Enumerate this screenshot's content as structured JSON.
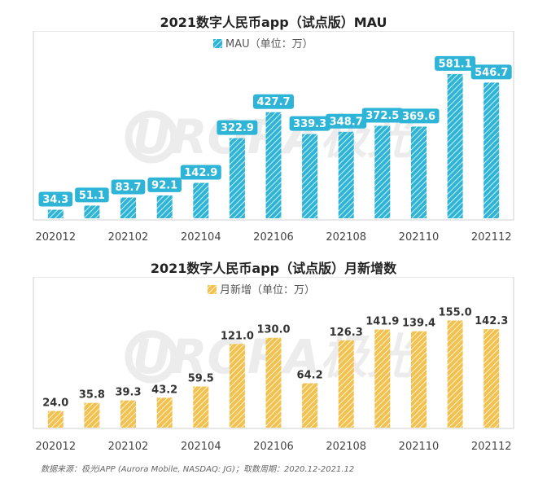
{
  "chart_data": [
    {
      "type": "bar",
      "title": "2021数字人民币app（试点版）MAU",
      "legend": "MAU（单位：万）",
      "legend_position": "top-center",
      "categories": [
        "202012",
        "202101",
        "202102",
        "202103",
        "202104",
        "202105",
        "202106",
        "202107",
        "202108",
        "202109",
        "202110",
        "202111",
        "202112"
      ],
      "x_tick_labels": [
        "202012",
        "202102",
        "202104",
        "202106",
        "202108",
        "202110",
        "202112"
      ],
      "series": [
        {
          "name": "MAU（单位：万）",
          "values": [
            34.3,
            51.1,
            83.7,
            92.1,
            142.9,
            322.9,
            427.7,
            339.3,
            348.7,
            372.5,
            369.6,
            581.1,
            546.7
          ]
        }
      ],
      "label_texts": [
        "34.3",
        "51.1",
        "83.7",
        "92.1",
        "142.9",
        "322.9",
        "427.7",
        "339.3",
        "348.7",
        "372.5",
        "369.6",
        "581.1",
        "546.7"
      ],
      "bar_color": "#2db4d6",
      "label_bg": "#2db4d6",
      "label_color": "#ffffff",
      "ylim": [
        0,
        640
      ],
      "grid": false
    },
    {
      "type": "bar",
      "title": "2021数字人民币app（试点版）月新增数",
      "legend": "月新增（单位：万）",
      "legend_position": "top-center",
      "categories": [
        "202012",
        "202101",
        "202102",
        "202103",
        "202104",
        "202105",
        "202106",
        "202107",
        "202108",
        "202109",
        "202110",
        "202111",
        "202112"
      ],
      "x_tick_labels": [
        "202012",
        "202102",
        "202104",
        "202106",
        "202108",
        "202110",
        "202112"
      ],
      "series": [
        {
          "name": "月新增（单位：万）",
          "values": [
            24.0,
            35.8,
            39.3,
            43.2,
            59.5,
            121.0,
            130.0,
            64.2,
            126.3,
            141.9,
            139.4,
            155.0,
            142.3
          ]
        }
      ],
      "label_texts": [
        "24.0",
        "35.8",
        "39.3",
        "43.2",
        "59.5",
        "121.0",
        "130.0",
        "64.2",
        "126.3",
        "141.9",
        "139.4",
        "155.0",
        "142.3"
      ],
      "bar_color": "#f2c14e",
      "label_color": "#333333",
      "ylim": [
        0,
        185
      ],
      "grid": false
    }
  ],
  "source_text": "数据来源：极光iAPP (Aurora Mobile, NASDAQ: JG)；取数周期：2020.12-2021.12",
  "watermark_text": "URORA极光"
}
